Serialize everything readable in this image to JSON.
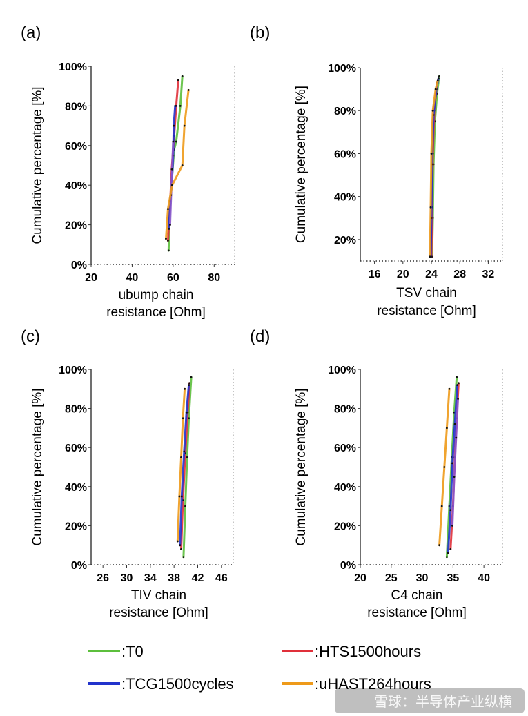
{
  "chart_data": [
    {
      "panel": "(a)",
      "type": "line",
      "xlabel_line1": "ubump chain",
      "xlabel_line2": "resistance [Ohm]",
      "ylabel": "Cumulative percentage [%]",
      "xlim": [
        20,
        90
      ],
      "ylim": [
        0,
        100
      ],
      "xticks": [
        "20",
        "40",
        "60",
        "80"
      ],
      "yticks": [
        "0%",
        "20%",
        "40%",
        "60%",
        "80%",
        "100%"
      ],
      "series": [
        {
          "color": "#5cbf3c",
          "x": [
            57.8,
            58.3,
            59.5,
            60.5,
            61.5,
            63.5,
            64.5
          ],
          "y": [
            7,
            25,
            45,
            58,
            62,
            80,
            95
          ]
        },
        {
          "color": "#e0303a",
          "x": [
            57.5,
            58.5,
            59.3,
            60.5,
            61.5,
            62.5
          ],
          "y": [
            12,
            30,
            48,
            65,
            80,
            93
          ]
        },
        {
          "color": "#2233cc",
          "x": [
            58,
            58.5,
            59.3,
            60,
            60.3,
            61
          ],
          "y": [
            18,
            32,
            40,
            55,
            70,
            80
          ]
        },
        {
          "color": "#8855cc",
          "x": [
            58.5,
            59,
            59.5,
            60
          ],
          "y": [
            20,
            35,
            48,
            62
          ]
        },
        {
          "color": "#ee9a1a",
          "x": [
            56.5,
            57.5,
            59.5,
            64.5,
            65.5,
            67.5
          ],
          "y": [
            13,
            28,
            40,
            50,
            70,
            88
          ]
        }
      ]
    },
    {
      "panel": "(b)",
      "type": "line",
      "xlabel_line1": "TSV chain",
      "xlabel_line2": "resistance [Ohm]",
      "ylabel": "Cumulative percentage [%]",
      "xlim": [
        14,
        34
      ],
      "ylim": [
        10,
        100
      ],
      "xticks": [
        "16",
        "20",
        "24",
        "28",
        "32"
      ],
      "yticks": [
        "20%",
        "40%",
        "60%",
        "80%",
        "100%"
      ],
      "series": [
        {
          "color": "#5cbf3c",
          "x": [
            24.1,
            24.2,
            24.3,
            24.5,
            24.8,
            25.1
          ],
          "y": [
            12,
            30,
            55,
            75,
            88,
            96
          ]
        },
        {
          "color": "#e0303a",
          "x": [
            24.0,
            24.1,
            24.2,
            24.4,
            24.8
          ],
          "y": [
            12,
            35,
            60,
            80,
            93
          ]
        },
        {
          "color": "#2233cc",
          "x": [
            23.9,
            24.0,
            24.1,
            24.3,
            24.7,
            25.0
          ],
          "y": [
            12,
            30,
            55,
            78,
            90,
            95
          ]
        },
        {
          "color": "#ee9a1a",
          "x": [
            23.8,
            23.9,
            24.0,
            24.2,
            24.6,
            24.9
          ],
          "y": [
            12,
            35,
            60,
            80,
            90,
            94
          ]
        }
      ]
    },
    {
      "panel": "(c)",
      "type": "line",
      "xlabel_line1": "TIV chain",
      "xlabel_line2": "resistance [Ohm]",
      "ylabel": "Cumulative percentage [%]",
      "xlim": [
        24,
        48
      ],
      "ylim": [
        0,
        100
      ],
      "xticks": [
        "26",
        "30",
        "34",
        "38",
        "42",
        "46"
      ],
      "yticks": [
        "0%",
        "20%",
        "40%",
        "60%",
        "80%",
        "100%"
      ],
      "series": [
        {
          "color": "#5cbf3c",
          "x": [
            39.6,
            39.9,
            40.2,
            40.5,
            40.9
          ],
          "y": [
            4,
            30,
            55,
            75,
            96
          ]
        },
        {
          "color": "#e0303a",
          "x": [
            39.2,
            39.5,
            39.9,
            40.3,
            40.6
          ],
          "y": [
            8,
            33,
            57,
            78,
            93
          ]
        },
        {
          "color": "#2233cc",
          "x": [
            39.0,
            39.3,
            39.7,
            40.1,
            40.5
          ],
          "y": [
            10,
            35,
            58,
            78,
            92
          ]
        },
        {
          "color": "#ee9a1a",
          "x": [
            38.6,
            38.9,
            39.2,
            39.5,
            39.8
          ],
          "y": [
            12,
            35,
            55,
            75,
            90
          ]
        }
      ]
    },
    {
      "panel": "(d)",
      "type": "line",
      "xlabel_line1": "C4 chain",
      "xlabel_line2": "resistance [Ohm]",
      "ylabel": "Cumulative percentage [%]",
      "xlim": [
        20,
        43
      ],
      "ylim": [
        0,
        100
      ],
      "xticks": [
        "20",
        "25",
        "30",
        "35",
        "40"
      ],
      "yticks": [
        "0%",
        "20%",
        "40%",
        "60%",
        "80%",
        "100%"
      ],
      "series": [
        {
          "color": "#5cbf3c",
          "x": [
            34.0,
            34.4,
            34.8,
            35.2,
            35.6
          ],
          "y": [
            4,
            30,
            55,
            78,
            96
          ]
        },
        {
          "color": "#e0303a",
          "x": [
            34.6,
            35.0,
            35.3,
            35.6,
            35.9
          ],
          "y": [
            8,
            30,
            55,
            75,
            93
          ]
        },
        {
          "color": "#2233cc",
          "x": [
            34.2,
            34.6,
            34.9,
            35.3,
            35.7
          ],
          "y": [
            6,
            28,
            52,
            72,
            92
          ]
        },
        {
          "color": "#8855cc",
          "x": [
            34.9,
            35.2,
            35.5,
            35.8
          ],
          "y": [
            20,
            45,
            65,
            85
          ]
        },
        {
          "color": "#ee9a1a",
          "x": [
            32.8,
            33.2,
            33.6,
            34.0,
            34.4
          ],
          "y": [
            10,
            30,
            50,
            70,
            90
          ]
        }
      ]
    }
  ],
  "legend": [
    {
      "label": ":T0",
      "color": "#5cbf3c"
    },
    {
      "label": ":HTS1500hours",
      "color": "#e0303a"
    },
    {
      "label": ":TCG1500cycles",
      "color": "#2233cc"
    },
    {
      "label": ":uHAST264hours",
      "color": "#ee9a1a"
    }
  ],
  "watermark": "雪球：半导体产业纵横"
}
